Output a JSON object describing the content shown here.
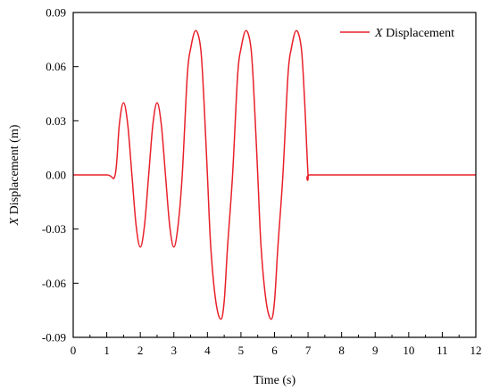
{
  "chart_data": {
    "type": "line",
    "title": "",
    "xlabel": "Time (s)",
    "ylabel_var": "X",
    "ylabel_rest": " Displacement (m)",
    "xlim": [
      0,
      12
    ],
    "ylim": [
      -0.09,
      0.09
    ],
    "x_ticks": [
      "0",
      "1",
      "2",
      "3",
      "4",
      "5",
      "6",
      "7",
      "8",
      "9",
      "10",
      "11",
      "12"
    ],
    "y_ticks": [
      "-0.09",
      "-0.06",
      "-0.03",
      "0.00",
      "0.03",
      "0.06",
      "0.09"
    ],
    "grid": false,
    "legend_position": "top-right",
    "series": [
      {
        "name_var": "X",
        "name_rest": " Displacement",
        "color": "#e8202a",
        "x": [
          0.0,
          1.0,
          1.25,
          1.375,
          1.5,
          1.625,
          1.75,
          1.875,
          2.0,
          2.125,
          2.25,
          2.375,
          2.5,
          2.625,
          2.75,
          2.875,
          3.0,
          3.125,
          3.25,
          3.4,
          3.5,
          3.65,
          3.8,
          3.9,
          4.0,
          4.1,
          4.25,
          4.4,
          4.5,
          4.6,
          4.75,
          4.9,
          5.0,
          5.15,
          5.3,
          5.4,
          5.5,
          5.6,
          5.75,
          5.9,
          6.0,
          6.1,
          6.25,
          6.4,
          6.5,
          6.65,
          6.8,
          6.9,
          7.0,
          7.05,
          8.0,
          9.0,
          10.0,
          11.0,
          12.0
        ],
        "y": [
          0.0,
          0.0,
          0.0,
          0.028,
          0.04,
          0.028,
          0.0,
          -0.028,
          -0.04,
          -0.028,
          0.0,
          0.028,
          0.04,
          0.028,
          0.0,
          -0.028,
          -0.04,
          -0.028,
          0.0,
          0.055,
          0.07,
          0.08,
          0.07,
          0.04,
          0.0,
          -0.04,
          -0.07,
          -0.08,
          -0.07,
          -0.04,
          0.0,
          0.055,
          0.07,
          0.08,
          0.07,
          0.04,
          0.0,
          -0.04,
          -0.07,
          -0.08,
          -0.07,
          -0.04,
          0.0,
          0.055,
          0.07,
          0.08,
          0.07,
          0.04,
          0.0,
          0.0,
          0.0,
          0.0,
          0.0,
          0.0,
          0.0
        ]
      }
    ]
  }
}
